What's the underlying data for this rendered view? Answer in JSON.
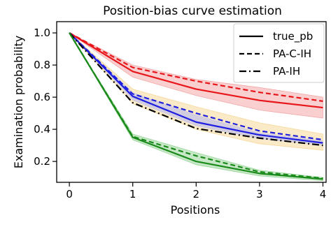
{
  "chart_data": {
    "type": "line",
    "title": "Position-bias curve estimation",
    "xlabel": "Positions",
    "ylabel": "Examination probability",
    "x": [
      0,
      1,
      2,
      3,
      4
    ],
    "xlim": [
      -0.2,
      4.05
    ],
    "ylim": [
      0.07,
      1.07
    ],
    "xticks": [
      "0",
      "1",
      "2",
      "3",
      "4"
    ],
    "yticks": [
      "0.2",
      "0.4",
      "0.6",
      "0.8",
      "1.0"
    ],
    "ytick_values": [
      0.2,
      0.4,
      0.6,
      0.8,
      1.0
    ],
    "grid": false,
    "legend_position": "top-right",
    "legend": [
      {
        "label": "true_pb",
        "dash": "solid"
      },
      {
        "label": "PA-C-IH",
        "dash": "dashed"
      },
      {
        "label": "PA-IH",
        "dash": "dashdot"
      }
    ],
    "groups": [
      {
        "color": "#e8161b",
        "band_color": "#f4a8a8",
        "lines": [
          {
            "style": "solid",
            "values": [
              1.0,
              0.76,
              0.65,
              0.58,
              0.535
            ]
          },
          {
            "style": "dashed",
            "values": [
              1.0,
              0.785,
              0.7,
              0.63,
              0.575
            ]
          }
        ],
        "band_upper": [
          1.0,
          0.8,
          0.71,
          0.66,
          0.6
        ],
        "band_lower": [
          1.0,
          0.725,
          0.61,
          0.52,
          0.47
        ]
      },
      {
        "color": "#1f1fe0",
        "band_color": "#f6d99a",
        "lines": [
          {
            "style": "solid",
            "values": [
              1.0,
              0.605,
              0.445,
              0.365,
              0.315
            ]
          },
          {
            "style": "dashed",
            "values": [
              1.0,
              0.62,
              0.5,
              0.39,
              0.335
            ]
          }
        ],
        "band_upper": [
          1.0,
          0.65,
          0.54,
          0.44,
          0.37
        ],
        "band_lower": [
          1.0,
          0.56,
          0.4,
          0.31,
          0.27
        ],
        "band2_color": "#b8b8f0",
        "band2_upper": [
          1.0,
          0.63,
          0.49,
          0.38,
          0.33
        ],
        "band2_lower": [
          1.0,
          0.58,
          0.42,
          0.34,
          0.3
        ]
      },
      {
        "color": "#000000",
        "lines": [
          {
            "style": "dashdot",
            "values": [
              1.0,
              0.565,
              0.405,
              0.345,
              0.3
            ]
          }
        ]
      },
      {
        "color": "#1a8a1a",
        "band_color": "#99d699",
        "lines": [
          {
            "style": "solid",
            "values": [
              1.0,
              0.35,
              0.2,
              0.125,
              0.09
            ]
          },
          {
            "style": "dashed",
            "values": [
              1.0,
              0.355,
              0.235,
              0.135,
              0.095
            ]
          }
        ],
        "band_upper": [
          1.0,
          0.37,
          0.255,
          0.145,
          0.1
        ],
        "band_lower": [
          1.0,
          0.335,
          0.18,
          0.11,
          0.08
        ]
      }
    ]
  }
}
